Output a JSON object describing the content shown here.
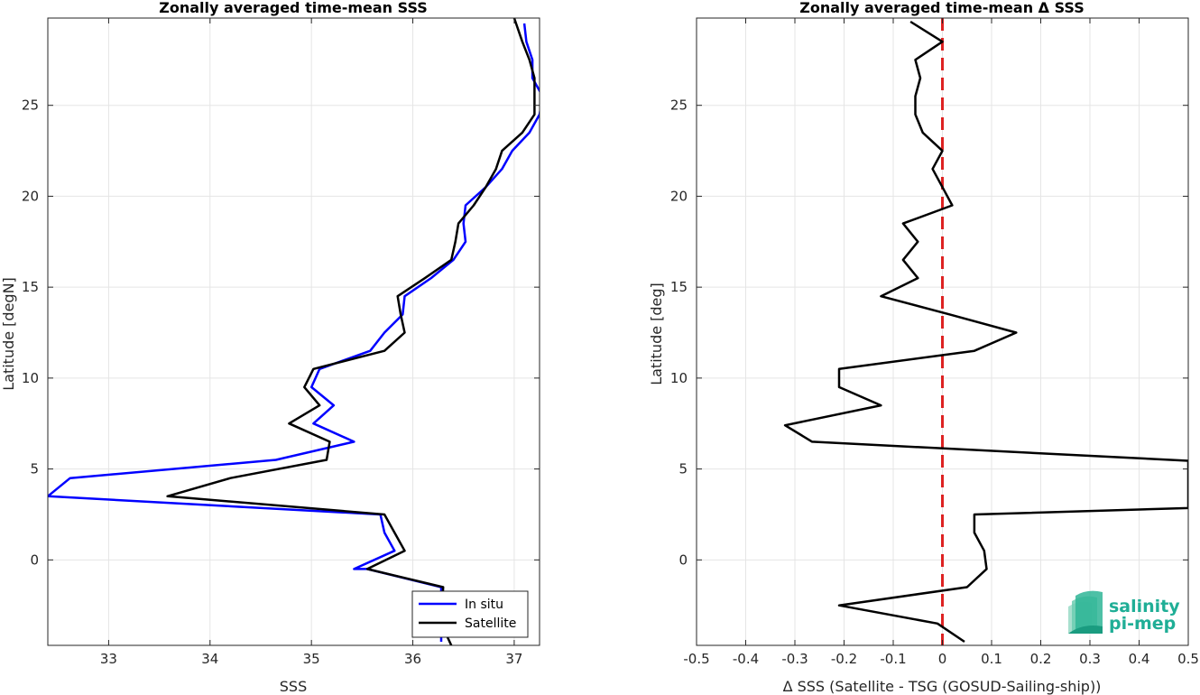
{
  "colors": {
    "in_situ": "#0000ff",
    "satellite": "#000000",
    "zero_line": "#dd2222",
    "grid": "#e5e5e5",
    "axis": "#262626",
    "logo": "#1fae96"
  },
  "logo": {
    "line1": "salinity",
    "line2": "pi-mep",
    "icon": "wave-stack-icon"
  },
  "chart_data": [
    {
      "type": "line",
      "title": "Zonally averaged time-mean SSS",
      "xlabel": "SSS",
      "ylabel": "Latitude [degN]",
      "xlim": [
        32.4,
        37.25
      ],
      "ylim": [
        -4.7,
        29.8
      ],
      "xticks": [
        33,
        34,
        35,
        36,
        37
      ],
      "yticks": [
        0,
        5,
        10,
        15,
        20,
        25
      ],
      "grid": true,
      "legend_position": "bottom-right",
      "series": [
        {
          "name": "In situ",
          "color_key": "in_situ",
          "points": [
            [
              36.28,
              -4.5
            ],
            [
              36.28,
              -3.5
            ],
            [
              36.28,
              -1.5
            ],
            [
              35.55,
              -0.5
            ],
            [
              35.42,
              -0.5
            ],
            [
              35.82,
              0.5
            ],
            [
              35.72,
              1.5
            ],
            [
              35.68,
              2.5
            ],
            [
              32.4,
              3.5
            ],
            [
              32.62,
              4.5
            ],
            [
              34.65,
              5.5
            ],
            [
              35.42,
              6.5
            ],
            [
              35.02,
              7.5
            ],
            [
              35.22,
              8.5
            ],
            [
              35.0,
              9.5
            ],
            [
              35.08,
              10.5
            ],
            [
              35.58,
              11.5
            ],
            [
              35.72,
              12.5
            ],
            [
              35.9,
              13.5
            ],
            [
              35.92,
              14.5
            ],
            [
              36.18,
              15.5
            ],
            [
              36.4,
              16.5
            ],
            [
              36.52,
              17.5
            ],
            [
              36.5,
              18.5
            ],
            [
              36.52,
              19.5
            ],
            [
              36.72,
              20.5
            ],
            [
              36.88,
              21.5
            ],
            [
              36.98,
              22.5
            ],
            [
              37.15,
              23.5
            ],
            [
              37.25,
              24.5
            ],
            [
              37.28,
              25.5
            ],
            [
              37.18,
              26.5
            ],
            [
              37.18,
              27.5
            ],
            [
              37.12,
              28.5
            ],
            [
              37.1,
              29.5
            ]
          ]
        },
        {
          "name": "Satellite",
          "color_key": "satellite",
          "points": [
            [
              36.38,
              -4.7
            ],
            [
              36.28,
              -3.5
            ],
            [
              36.3,
              -1.5
            ],
            [
              35.55,
              -0.5
            ],
            [
              35.92,
              0.5
            ],
            [
              35.82,
              1.5
            ],
            [
              35.72,
              2.5
            ],
            [
              33.58,
              3.5
            ],
            [
              34.2,
              4.5
            ],
            [
              35.15,
              5.5
            ],
            [
              35.18,
              6.5
            ],
            [
              34.78,
              7.5
            ],
            [
              35.08,
              8.5
            ],
            [
              34.93,
              9.5
            ],
            [
              35.02,
              10.5
            ],
            [
              35.72,
              11.5
            ],
            [
              35.92,
              12.5
            ],
            [
              35.88,
              13.5
            ],
            [
              35.85,
              14.5
            ],
            [
              36.12,
              15.5
            ],
            [
              36.38,
              16.5
            ],
            [
              36.42,
              17.5
            ],
            [
              36.45,
              18.5
            ],
            [
              36.6,
              19.5
            ],
            [
              36.72,
              20.5
            ],
            [
              36.82,
              21.5
            ],
            [
              36.88,
              22.5
            ],
            [
              37.08,
              23.5
            ],
            [
              37.2,
              24.5
            ],
            [
              37.2,
              25.5
            ],
            [
              37.2,
              26.5
            ],
            [
              37.15,
              27.5
            ],
            [
              37.08,
              28.5
            ],
            [
              37.0,
              29.8
            ]
          ]
        }
      ]
    },
    {
      "type": "line",
      "title": "Zonally averaged time-mean Δ SSS",
      "xlabel": "Δ SSS (Satellite - TSG (GOSUD-Sailing-ship))",
      "ylabel": "Latitude [deg]",
      "xlim": [
        -0.5,
        0.5
      ],
      "ylim": [
        -4.7,
        29.8
      ],
      "xticks": [
        -0.5,
        -0.4,
        -0.3,
        -0.2,
        -0.1,
        0,
        0.1,
        0.2,
        0.3,
        0.4,
        0.5
      ],
      "xtick_labels": [
        "-0.5",
        "-0.4",
        "-0.3",
        "-0.2",
        "-0.1",
        "0",
        "0.1",
        "0.2",
        "0.3",
        "0.4",
        "0.5"
      ],
      "yticks": [
        0,
        5,
        10,
        15,
        20,
        25
      ],
      "grid": true,
      "reference_line": {
        "x": 0,
        "style": "dashed",
        "color_key": "zero_line"
      },
      "series": [
        {
          "color_key": "satellite",
          "points": [
            [
              0.045,
              -4.5
            ],
            [
              -0.01,
              -3.5
            ],
            [
              -0.21,
              -2.5
            ],
            [
              0.05,
              -1.5
            ],
            [
              0.09,
              -0.5
            ],
            [
              0.085,
              0.5
            ],
            [
              0.065,
              1.5
            ],
            [
              0.065,
              2.5
            ],
            [
              0.5,
              2.85
            ],
            [
              0.5,
              5.45
            ],
            [
              -0.265,
              6.5
            ],
            [
              -0.32,
              7.4
            ],
            [
              -0.125,
              8.5
            ],
            [
              -0.21,
              9.5
            ],
            [
              -0.21,
              10.5
            ],
            [
              0.065,
              11.5
            ],
            [
              0.15,
              12.5
            ],
            [
              0.015,
              13.5
            ],
            [
              -0.125,
              14.5
            ],
            [
              -0.05,
              15.5
            ],
            [
              -0.08,
              16.5
            ],
            [
              -0.05,
              17.5
            ],
            [
              -0.08,
              18.5
            ],
            [
              0.02,
              19.5
            ],
            [
              0.0,
              20.5
            ],
            [
              -0.02,
              21.5
            ],
            [
              0.0,
              22.5
            ],
            [
              -0.04,
              23.5
            ],
            [
              -0.055,
              24.5
            ],
            [
              -0.055,
              25.5
            ],
            [
              -0.045,
              26.5
            ],
            [
              -0.055,
              27.5
            ],
            [
              0.0,
              28.5
            ],
            [
              -0.065,
              29.6
            ]
          ]
        }
      ]
    }
  ]
}
